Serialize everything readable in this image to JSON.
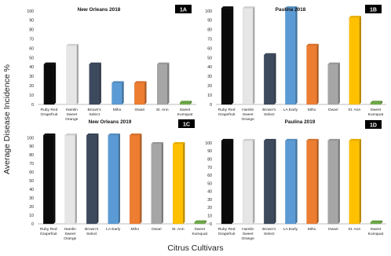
{
  "figure": {
    "ylabel": "Average Disease Incidence %",
    "xlabel": "Citrus Cultivars"
  },
  "chart_data": [
    {
      "type": "bar",
      "panel": "1A",
      "title": "New Orleans 2018",
      "categories": [
        "Ruby Red\nGrapefruit",
        "Hamlin\nSweet\nOrange",
        "Brown's\nSelect",
        "Miho",
        "Owari",
        "St. Ann",
        "Sweet\nKumquat"
      ],
      "values": [
        43,
        63,
        43,
        23,
        23,
        43,
        2
      ],
      "colors": [
        "#0a0a0a",
        "#e6e6e6",
        "#3d4a5e",
        "#5b9bd5",
        "#ed7d31",
        "#a6a6a6",
        "#70ad47"
      ],
      "yticks": [
        0,
        10,
        20,
        30,
        40,
        50,
        60,
        70,
        80,
        90,
        100
      ],
      "ylim": [
        0,
        100
      ]
    },
    {
      "type": "bar",
      "panel": "1B",
      "title": "Paulina 2018",
      "categories": [
        "Ruby Red\nGrapefruit",
        "Hamlin\nSweet\nOrange",
        "Brown's\nSelect",
        "LA Early",
        "Miho",
        "Owari",
        "St. Ann",
        "Sweet\nKumquat"
      ],
      "values": [
        103,
        103,
        53,
        103,
        63,
        43,
        93,
        2
      ],
      "colors": [
        "#0a0a0a",
        "#e6e6e6",
        "#3d4a5e",
        "#5b9bd5",
        "#ed7d31",
        "#a6a6a6",
        "#ffc000",
        "#70ad47"
      ],
      "yticks": [
        0,
        10,
        20,
        30,
        40,
        50,
        60,
        70,
        80,
        90,
        100
      ],
      "ylim": [
        0,
        105
      ]
    },
    {
      "type": "bar",
      "panel": "1C",
      "title": "New Orleans 2019",
      "categories": [
        "Ruby Red\nGrapefruit",
        "Hamlin\nSweet\nOrange",
        "Brown's\nSelect",
        "LA Early",
        "Miho",
        "Owari",
        "St. Ann",
        "Sweet\nKumquat"
      ],
      "values": [
        103,
        103,
        103,
        103,
        103,
        93,
        93,
        2
      ],
      "colors": [
        "#0a0a0a",
        "#e6e6e6",
        "#3d4a5e",
        "#5b9bd5",
        "#ed7d31",
        "#a6a6a6",
        "#ffc000",
        "#70ad47"
      ],
      "yticks": [
        0,
        10,
        20,
        30,
        40,
        50,
        60,
        70,
        80,
        90,
        100
      ],
      "ylim": [
        0,
        105
      ]
    },
    {
      "type": "bar",
      "panel": "1D",
      "title": "Paulina 2019",
      "categories": [
        "Ruby Red\nGrapefruit",
        "Hamlin\nSweet\nOrange",
        "Brown's\nSelect",
        "LA Early",
        "Miho",
        "Owari",
        "St. Ann",
        "Sweet\nKumquat"
      ],
      "values": [
        103,
        103,
        103,
        103,
        103,
        103,
        103,
        2
      ],
      "colors": [
        "#0a0a0a",
        "#e6e6e6",
        "#3d4a5e",
        "#5b9bd5",
        "#ed7d31",
        "#a6a6a6",
        "#ffc000",
        "#70ad47"
      ],
      "yticks": [
        0,
        10,
        20,
        30,
        40,
        50,
        60,
        70,
        80,
        90,
        100
      ],
      "ylim": [
        0,
        105
      ]
    }
  ]
}
